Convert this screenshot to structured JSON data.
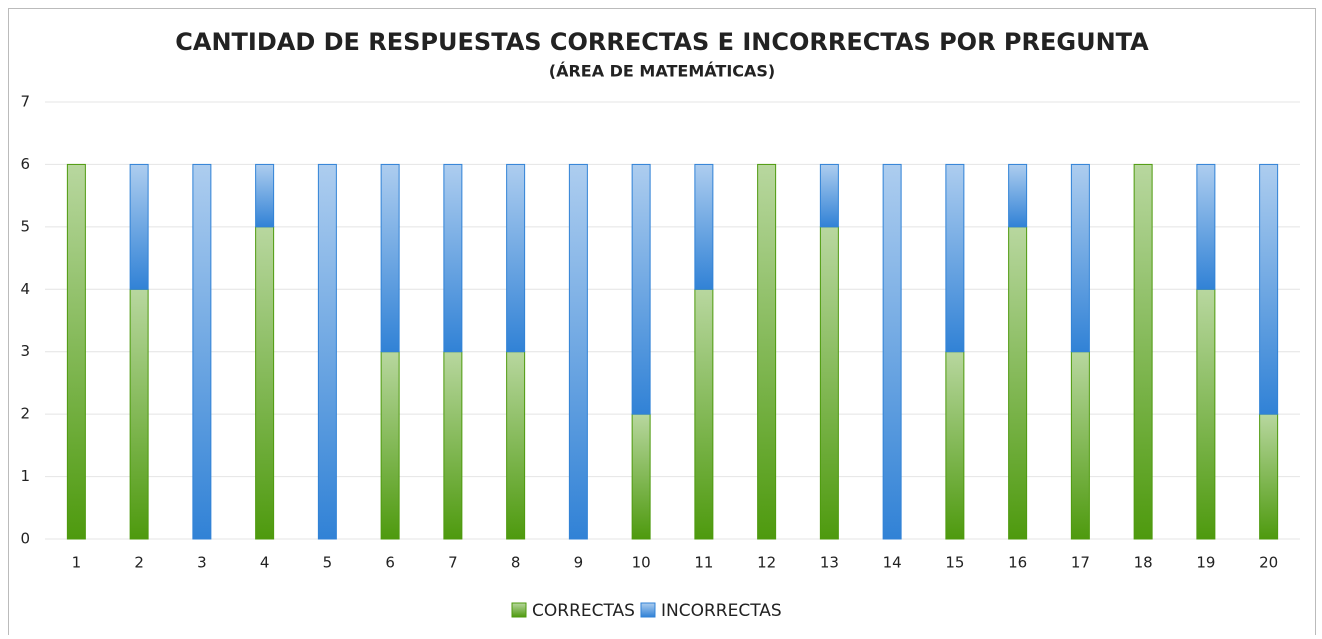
{
  "chart_data": {
    "type": "bar",
    "stacked": true,
    "title": "CANTIDAD DE RESPUESTAS CORRECTAS E INCORRECTAS POR PREGUNTA",
    "subtitle": "(ÁREA DE MATEMÁTICAS)",
    "categories": [
      "1",
      "2",
      "3",
      "4",
      "5",
      "6",
      "7",
      "8",
      "9",
      "10",
      "11",
      "12",
      "13",
      "14",
      "15",
      "16",
      "17",
      "18",
      "19",
      "20"
    ],
    "series": [
      {
        "name": "CORRECTAS",
        "color": "#4e9a0e",
        "values": [
          6,
          4,
          0,
          5,
          0,
          3,
          3,
          3,
          0,
          2,
          4,
          6,
          5,
          0,
          3,
          5,
          3,
          6,
          4,
          2
        ]
      },
      {
        "name": "INCORRECTAS",
        "color": "#3182d6",
        "values": [
          0,
          2,
          6,
          1,
          6,
          3,
          3,
          3,
          6,
          4,
          2,
          0,
          1,
          6,
          3,
          1,
          3,
          0,
          2,
          4
        ]
      }
    ],
    "ylim": [
      0,
      7
    ],
    "yticks": [
      0,
      1,
      2,
      3,
      4,
      5,
      6,
      7
    ],
    "grid": true,
    "legend": "bottom"
  }
}
